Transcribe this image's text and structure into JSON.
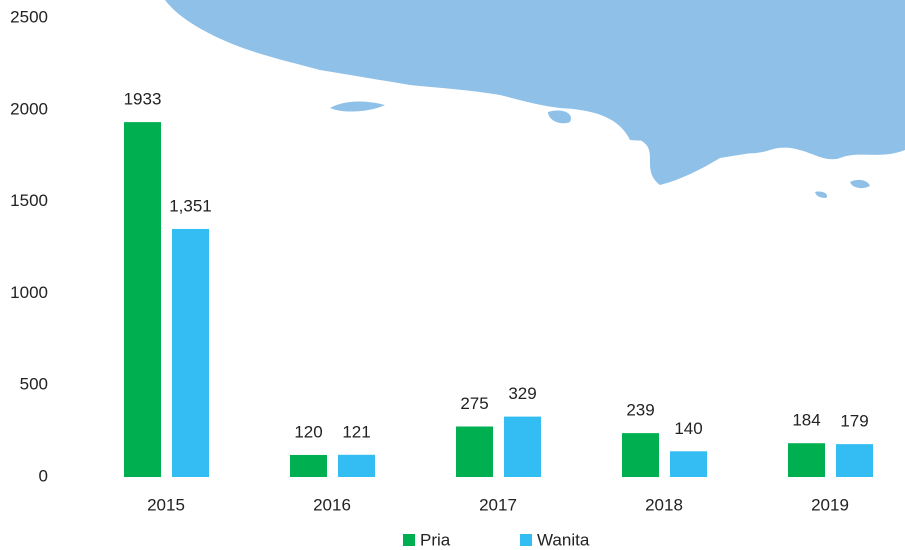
{
  "chart_data": {
    "type": "bar",
    "categories": [
      "2015",
      "2016",
      "2017",
      "2018",
      "2019"
    ],
    "series": [
      {
        "name": "Pria",
        "color": "#00b050",
        "values": [
          1933,
          120,
          275,
          239,
          184
        ]
      },
      {
        "name": "Wanita",
        "color": "#33bdf2",
        "values": [
          1351,
          121,
          329,
          140,
          179
        ],
        "value_labels": [
          "1,351",
          "121",
          "329",
          "140",
          "179"
        ]
      }
    ],
    "ylim": [
      0,
      2500
    ],
    "yticks": [
      0,
      500,
      1000,
      1500,
      2000,
      2500
    ],
    "grid": false,
    "legend": "bottom"
  }
}
